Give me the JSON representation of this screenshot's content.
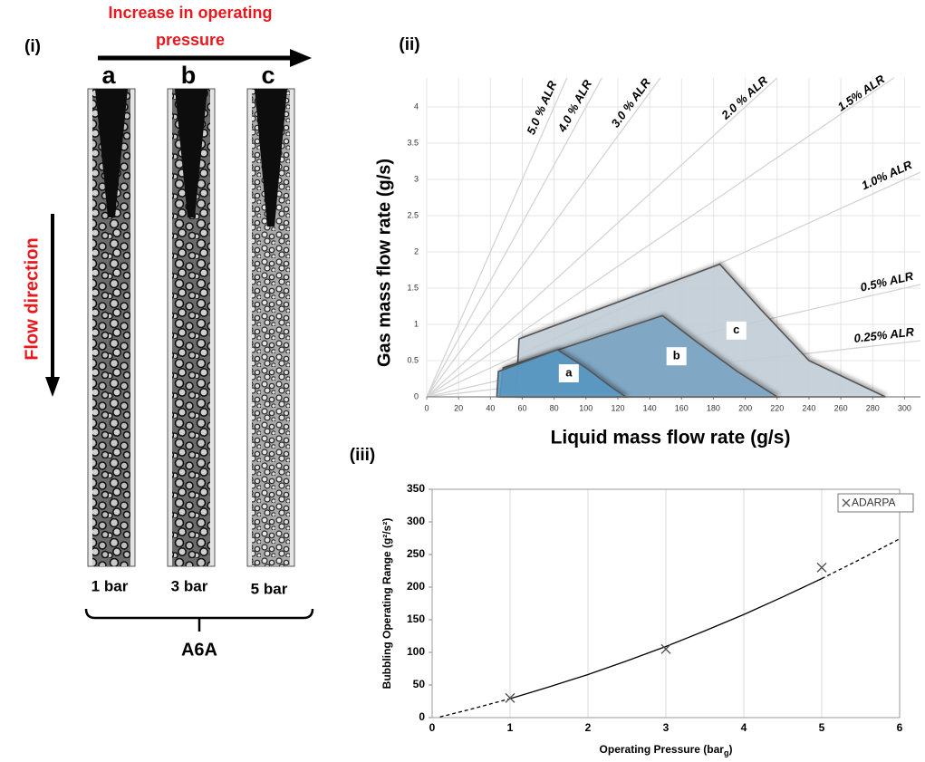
{
  "panel_i": {
    "label": "(i)",
    "arrow_label": [
      "Increase in operating",
      "pressure"
    ],
    "columns": [
      {
        "letter": "a",
        "pressure": "1 bar"
      },
      {
        "letter": "b",
        "pressure": "3 bar"
      },
      {
        "letter": "c",
        "pressure": "5 bar"
      }
    ],
    "flow_label": "Flow direction",
    "group_label": "A6A"
  },
  "chart_data": [
    {
      "type": "area",
      "panel_label": "(ii)",
      "xlabel": "Liquid mass flow rate (g/s)",
      "ylabel": "Gas mass flow rate (g/s)",
      "xlim": [
        0,
        310
      ],
      "ylim": [
        0,
        4.4
      ],
      "xticks": [
        0,
        20,
        40,
        60,
        80,
        100,
        120,
        140,
        160,
        180,
        200,
        220,
        240,
        260,
        280,
        300
      ],
      "yticks": [
        0,
        0.5,
        1,
        1.5,
        2,
        2.5,
        3,
        3.5,
        4
      ],
      "grid": true,
      "lines": [
        {
          "name": "5.0 % ALR",
          "x": [
            0,
            88
          ],
          "values": [
            0,
            4.4
          ]
        },
        {
          "name": "4.0 % ALR",
          "x": [
            0,
            110
          ],
          "values": [
            0,
            4.4
          ]
        },
        {
          "name": "3.0 % ALR",
          "x": [
            0,
            146.7
          ],
          "values": [
            0,
            4.4
          ]
        },
        {
          "name": "2.0 % ALR",
          "x": [
            0,
            220
          ],
          "values": [
            0,
            4.4
          ]
        },
        {
          "name": "1.5% ALR",
          "x": [
            0,
            293.3
          ],
          "values": [
            0,
            4.4
          ]
        },
        {
          "name": "1.0% ALR",
          "x": [
            0,
            310
          ],
          "values": [
            0,
            3.1
          ]
        },
        {
          "name": "0.5% ALR",
          "x": [
            0,
            310
          ],
          "values": [
            0,
            1.55
          ]
        },
        {
          "name": "0.25% ALR",
          "x": [
            0,
            310
          ],
          "values": [
            0,
            0.775
          ]
        }
      ],
      "series": [
        {
          "name": "c",
          "color": "#c9d6df",
          "x": [
            56,
            58,
            184,
            210,
            240,
            288
          ],
          "values": [
            0,
            0.8,
            1.83,
            1.2,
            0.5,
            0
          ]
        },
        {
          "name": "b",
          "color": "#7eaacb",
          "x": [
            46,
            48,
            148,
            170,
            195,
            220
          ],
          "values": [
            0,
            0.4,
            1.12,
            0.75,
            0.35,
            0
          ]
        },
        {
          "name": "a",
          "color": "#5a9dca",
          "x": [
            44,
            45,
            82,
            100,
            115,
            125
          ],
          "values": [
            0,
            0.35,
            0.65,
            0.4,
            0.15,
            0
          ]
        }
      ]
    },
    {
      "type": "scatter",
      "panel_label": "(iii)",
      "xlabel": [
        "Operating Pressure (bar",
        "g",
        ")"
      ],
      "ylabel": "Bubbling  Operating Range (g²/s²)",
      "xlim": [
        0,
        6
      ],
      "ylim": [
        0,
        350
      ],
      "xticks": [
        0,
        1,
        2,
        3,
        4,
        5,
        6
      ],
      "yticks": [
        0,
        50,
        100,
        150,
        200,
        250,
        300,
        350
      ],
      "grid": true,
      "legend": "upper right",
      "series": [
        {
          "name": "ADARPA",
          "color": "#555555",
          "x": [
            1,
            3,
            5
          ],
          "values": [
            30,
            105,
            230
          ]
        }
      ],
      "fit": {
        "x": [
          0.1,
          0.5,
          1,
          1.5,
          2,
          2.5,
          3,
          3.5,
          4,
          4.5,
          5,
          5.5,
          6
        ],
        "values": [
          1,
          13,
          29,
          47,
          66,
          87,
          109,
          133,
          158,
          185,
          213,
          243,
          274
        ]
      }
    }
  ]
}
